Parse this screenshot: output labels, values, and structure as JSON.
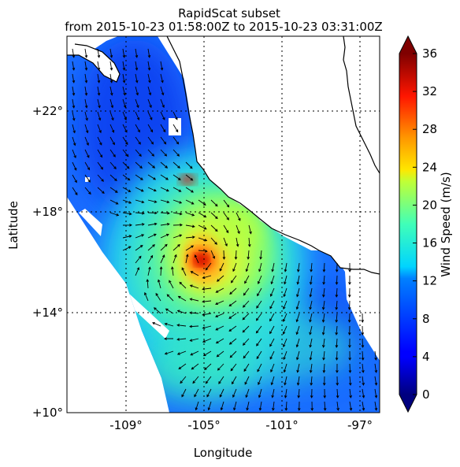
{
  "title_line1": "RapidScat subset",
  "title_line2": "from 2015-10-23 01:58:00Z to 2015-10-23 03:31:00Z",
  "xlabel": "Longitude",
  "ylabel": "Latitude",
  "x_ticks": [
    "-109°",
    "-105°",
    "-101°",
    "-97°"
  ],
  "y_ticks": [
    "+22°",
    "+18°",
    "+14°",
    "+10°"
  ],
  "colorbar": {
    "label": "Wind Speed (m/s)",
    "ticks": [
      "0",
      "4",
      "8",
      "12",
      "16",
      "20",
      "24",
      "28",
      "32",
      "36"
    ],
    "colormap": "jet",
    "range": [
      0,
      36
    ],
    "extend": "both"
  },
  "chart_data": {
    "type": "heatmap",
    "title": "RapidScat subset",
    "subtitle": "from 2015-10-23 01:58:00Z to 2015-10-23 03:31:00Z",
    "xlabel": "Longitude",
    "ylabel": "Latitude",
    "xlim": [
      -112,
      -96
    ],
    "ylim": [
      10,
      25
    ],
    "x_ticks": [
      -109,
      -105,
      -101,
      -97
    ],
    "y_ticks": [
      22,
      18,
      14,
      10
    ],
    "value_label": "Wind Speed (m/s)",
    "value_range": [
      0,
      36
    ],
    "grid": true,
    "features": [
      "coastline",
      "wind vectors"
    ],
    "storm_center": {
      "lon": -105.0,
      "lat": 16.4,
      "peak_wind_ms": 36
    }
  },
  "colors": {
    "land": "#ffffff",
    "coastline": "#000000",
    "grid": "#000000"
  }
}
